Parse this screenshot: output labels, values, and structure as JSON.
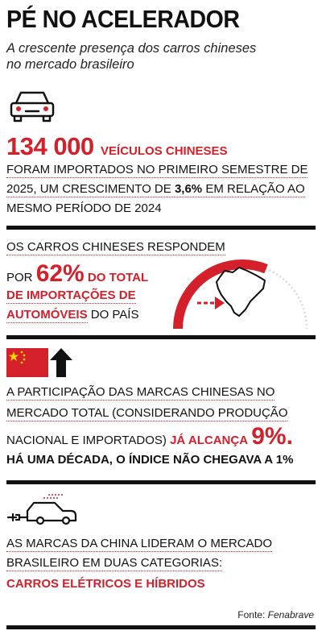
{
  "header": {
    "title": "PÉ NO ACELERADOR",
    "subtitle": "A crescente presença dos carros chineses no mercado brasileiro"
  },
  "section1": {
    "number": "134 000",
    "number_label": "VEÍCULOS CHINESES",
    "line1": "FORAM IMPORTADOS NO PRIMEIRO SEMESTRE DE",
    "line2_a": "2025, UM CRESCIMENTO DE ",
    "line2_b": "3,6%",
    "line2_c": " EM RELAÇÃO AO",
    "line3": "MESMO PERÍODO DE 2024"
  },
  "section2": {
    "line1": "OS CARROS CHINESES RESPONDEM",
    "por": "POR",
    "percent": "62%",
    "do_total": "DO TOTAL",
    "line3": "DE IMPORTAÇÕES DE",
    "line4_a": "AUTOMÓVEIS",
    "line4_b": " DO PAÍS",
    "gauge_value_percent": 62
  },
  "section3": {
    "line1": "A PARTICIPAÇÃO DAS MARCAS CHINESAS NO",
    "line2": "MERCADO TOTAL (CONSIDERANDO PRODUÇÃO",
    "line3_a": "NACIONAL E IMPORTADOS) ",
    "line3_b": "JÁ ALCANÇA",
    "percent": "9%.",
    "line4": "HÁ UMA DÉCADA, O ÍNDICE NÃO CHEGAVA A 1%"
  },
  "section4": {
    "line1": "AS MARCAS DA CHINA LIDERAM O MERCADO",
    "line2": "BRASILEIRO EM DUAS CATEGORIAS:",
    "line3": "CARROS ELÉTRICOS E HÍBRIDOS"
  },
  "footer": {
    "source_label": "Fonte: ",
    "source_name": "Fenabrave"
  },
  "colors": {
    "accent": "#d4202a",
    "text": "#111111",
    "flag_star": "#ffd400"
  }
}
